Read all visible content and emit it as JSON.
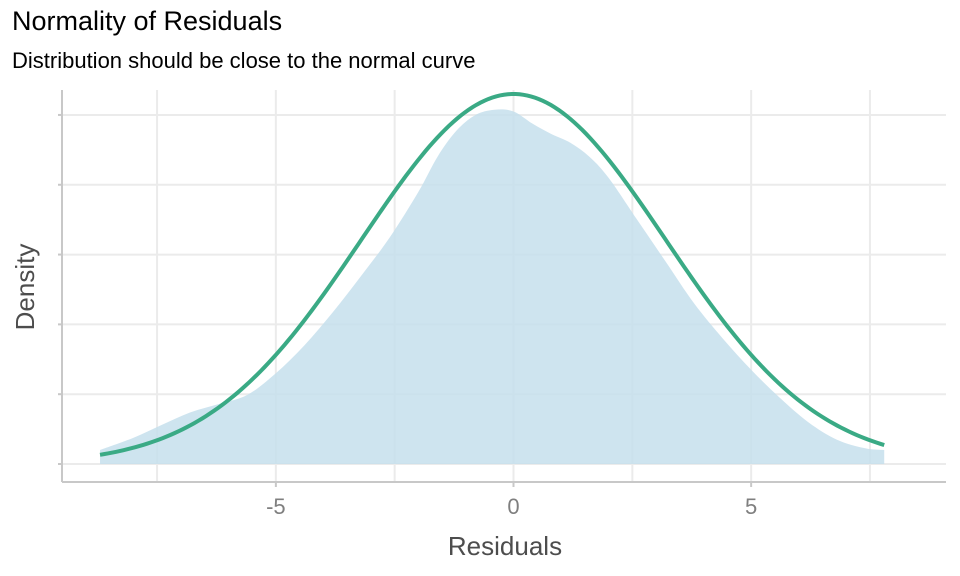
{
  "chart_data": {
    "type": "area",
    "title": "Normality of Residuals",
    "subtitle": "Distribution should be close to the normal curve",
    "xlabel": "Residuals",
    "ylabel": "Density",
    "xlim": [
      -9.5,
      9.1
    ],
    "x_ticks": [
      -5,
      0,
      5
    ],
    "x_tick_labels": [
      "-5",
      "0",
      "5"
    ],
    "x_minor_gridlines": [
      -7.5,
      -2.5,
      2.5,
      7.5
    ],
    "y_ticks_hidden": true,
    "ylim": [
      0,
      1.06
    ],
    "grid": true,
    "colors": {
      "density_fill": "#c6dfec",
      "normal_curve": "#3aaa85",
      "grid": "#ebebeb",
      "axis": "#c8c8c8"
    },
    "series": [
      {
        "kind": "density-area",
        "x": [
          -8.7,
          -8.0,
          -7.4,
          -6.8,
          -6.2,
          -5.6,
          -5.0,
          -4.4,
          -3.8,
          -3.2,
          -2.6,
          -2.0,
          -1.6,
          -1.2,
          -0.8,
          -0.4,
          0.0,
          0.4,
          0.8,
          1.2,
          1.6,
          2.0,
          2.6,
          3.2,
          3.8,
          4.4,
          5.0,
          5.6,
          6.2,
          6.8,
          7.4,
          7.8
        ],
        "y": [
          0.04,
          0.075,
          0.112,
          0.148,
          0.172,
          0.198,
          0.26,
          0.34,
          0.435,
          0.54,
          0.65,
          0.78,
          0.88,
          0.955,
          1.0,
          1.015,
          1.01,
          0.975,
          0.945,
          0.92,
          0.88,
          0.82,
          0.7,
          0.58,
          0.46,
          0.36,
          0.27,
          0.19,
          0.12,
          0.07,
          0.045,
          0.04
        ]
      },
      {
        "kind": "normal-curve",
        "mean": 0.0,
        "sd": 3.2,
        "peak": 1.06,
        "x_range": [
          -8.7,
          7.8
        ]
      }
    ]
  }
}
